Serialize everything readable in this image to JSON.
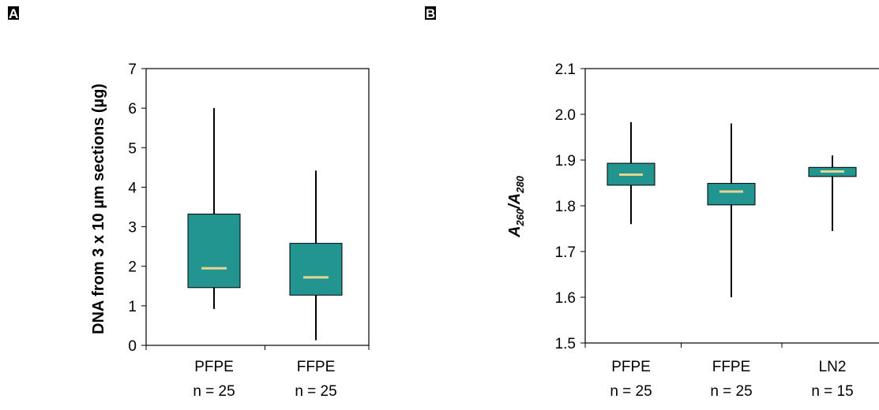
{
  "panels": {
    "a": {
      "letter": "A"
    },
    "b": {
      "letter": "B"
    }
  },
  "colors": {
    "box_fill": "#229590",
    "median": "#e6d591"
  },
  "chart_data": [
    {
      "type": "box",
      "panel": "A",
      "ylabel": "DNA from 3 x 10 µm sections (µg)",
      "ylim": [
        0,
        7
      ],
      "yticks": [
        0,
        1,
        2,
        3,
        4,
        5,
        6,
        7
      ],
      "grid": false,
      "categories": [
        {
          "name": "PFPE",
          "n_label": "n = 25",
          "min": 0.92,
          "q1": 1.46,
          "median": 1.95,
          "q3": 3.32,
          "max": 6.0
        },
        {
          "name": "FFPE",
          "n_label": "n = 25",
          "min": 0.13,
          "q1": 1.27,
          "median": 1.72,
          "q3": 2.58,
          "max": 4.42
        }
      ]
    },
    {
      "type": "box",
      "panel": "B",
      "ylabel": {
        "base": "A",
        "sub1": "260",
        "sep": "/A",
        "sub2": "280"
      },
      "ylim": [
        1.5,
        2.1
      ],
      "yticks": [
        "1.5",
        "1.6",
        "1.7",
        "1.8",
        "1.9",
        "2.0",
        "2.1"
      ],
      "grid": false,
      "categories": [
        {
          "name": "PFPE",
          "n_label": "n = 25",
          "min": 1.76,
          "q1": 1.845,
          "median": 1.868,
          "q3": 1.893,
          "max": 1.983
        },
        {
          "name": "FFPE",
          "n_label": "n = 25",
          "min": 1.6,
          "q1": 1.802,
          "median": 1.831,
          "q3": 1.849,
          "max": 1.98
        },
        {
          "name": "LN2",
          "n_label": "n = 15",
          "min": 1.745,
          "q1": 1.864,
          "median": 1.875,
          "q3": 1.884,
          "max": 1.91
        }
      ]
    }
  ]
}
